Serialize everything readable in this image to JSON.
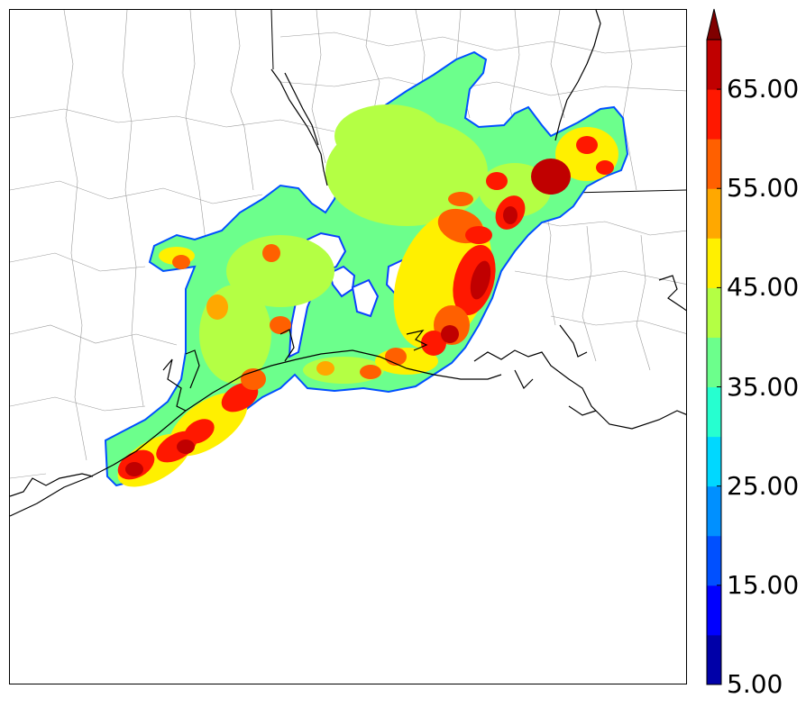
{
  "map": {
    "field": "reflectivity",
    "colormap": "jet",
    "colorbar": {
      "min": 5.0,
      "max": 70.0,
      "step": 5.0,
      "extend": "max",
      "tick_labels": [
        "5.00",
        "15.00",
        "25.00",
        "35.00",
        "45.00",
        "55.00",
        "65.00"
      ],
      "colors": [
        "#0000a8",
        "#0000ff",
        "#0050ff",
        "#0090ff",
        "#00d8ff",
        "#26ffd0",
        "#6cff8c",
        "#b4ff44",
        "#fff000",
        "#ffa800",
        "#ff6000",
        "#ff1800",
        "#c00000"
      ],
      "extend_color": "#800000"
    },
    "coastline_color": "#000000",
    "county_line_color": "#888888"
  }
}
